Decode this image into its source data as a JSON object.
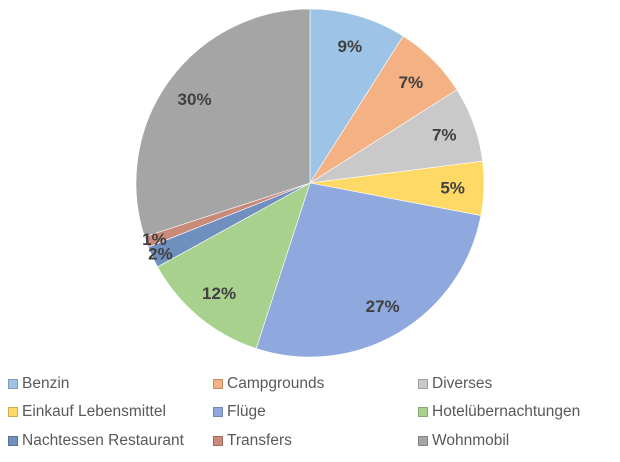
{
  "chart_data": {
    "type": "pie",
    "title": "",
    "start_angle": "top, clockwise",
    "legend_position": "bottom",
    "slices": [
      {
        "label": "Benzin",
        "value": 9,
        "data_label": "9%",
        "color": "#9dc3e6"
      },
      {
        "label": "Campgrounds",
        "value": 7,
        "data_label": "7%",
        "color": "#f4b183"
      },
      {
        "label": "Diverses",
        "value": 7,
        "data_label": "7%",
        "color": "#c9c9c9"
      },
      {
        "label": "Einkauf Lebensmittel",
        "value": 5,
        "data_label": "5%",
        "color": "#ffd966"
      },
      {
        "label": "Flüge",
        "value": 27,
        "data_label": "27%",
        "color": "#8fa8de"
      },
      {
        "label": "Hotelübernachtungen",
        "value": 12,
        "data_label": "12%",
        "color": "#a9d18e"
      },
      {
        "label": "Nachtessen Restaurant",
        "value": 2,
        "data_label": "2%",
        "color": "#6f8fbf"
      },
      {
        "label": "Transfers",
        "value": 1,
        "data_label": "1%",
        "color": "#c98a7a"
      },
      {
        "label": "Wohnmobil",
        "value": 30,
        "data_label": "30%",
        "color": "#a5a5a5"
      }
    ]
  }
}
